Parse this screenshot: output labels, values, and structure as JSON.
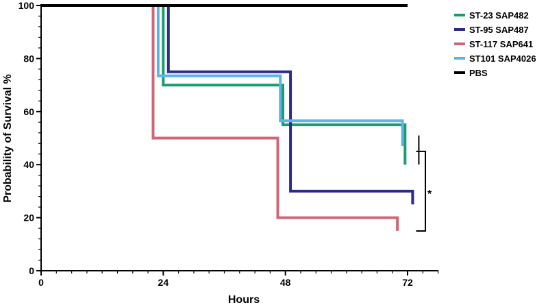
{
  "chart_data": {
    "type": "line",
    "subtype": "step",
    "xlabel": "Hours",
    "ylabel": "Probability of Survival %",
    "xlim": [
      0,
      78
    ],
    "ylim": [
      0,
      100
    ],
    "xticks": [
      0,
      24,
      48,
      72
    ],
    "yticks": [
      0,
      20,
      40,
      60,
      80,
      100
    ],
    "legend_position": "top-right",
    "annotation": "*",
    "series": [
      {
        "name": "ST-23 SAP482",
        "color": "#1a9b73",
        "x": [
          0,
          24,
          24,
          47.5,
          47.5,
          71.5,
          71.5
        ],
        "y": [
          100,
          100,
          70,
          70,
          55,
          55,
          40
        ]
      },
      {
        "name": "ST-95 SAP487",
        "color": "#2e2a8c",
        "x": [
          0,
          25,
          25,
          49,
          49,
          73,
          73
        ],
        "y": [
          100,
          100,
          75,
          75,
          30,
          30,
          25
        ]
      },
      {
        "name": "ST-117 SAP641",
        "color": "#cf6677",
        "x": [
          0,
          22,
          22,
          46.5,
          46.5,
          70,
          70
        ],
        "y": [
          100,
          100,
          50,
          50,
          20,
          20,
          15
        ]
      },
      {
        "name": "ST101 SAP4026",
        "color": "#5db5e6",
        "x": [
          0,
          23,
          23,
          47,
          47,
          71,
          71
        ],
        "y": [
          100,
          100,
          73.5,
          73.5,
          56.5,
          56.5,
          47
        ]
      },
      {
        "name": "PBS",
        "color": "#000000",
        "x": [
          0,
          72,
          72
        ],
        "y": [
          100,
          100,
          100
        ]
      }
    ]
  }
}
